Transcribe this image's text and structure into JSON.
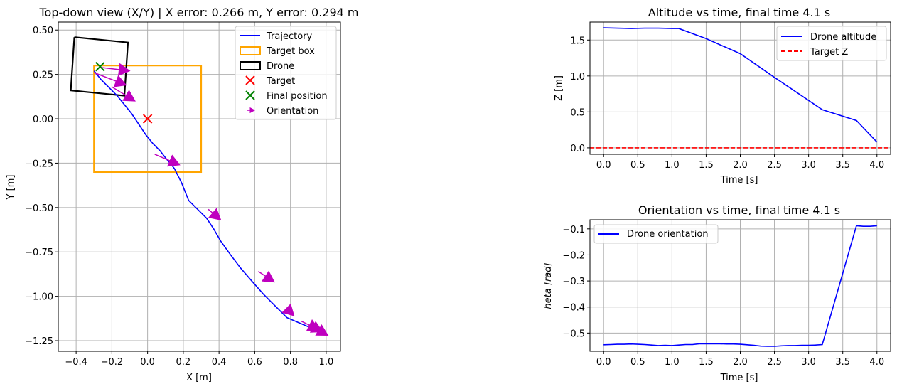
{
  "colors": {
    "trajectory": "#0000ff",
    "target_box": "#ffa500",
    "drone": "#000000",
    "target": "#ff0000",
    "final": "#008000",
    "orientation": "#bf00bf",
    "target_z": "#ff0000",
    "grid": "#b0b0b0"
  },
  "chart_data": [
    {
      "type": "line",
      "title": "Top-down view (X/Y) | X error: 0.266 m, Y error: 0.294 m",
      "xlabel": "X [m]",
      "ylabel": "Y [m]",
      "xlim": [
        -0.5,
        1.08
      ],
      "ylim": [
        -1.31,
        0.545
      ],
      "xticks": [
        -0.4,
        -0.2,
        0.0,
        0.2,
        0.4,
        0.6,
        0.8,
        1.0
      ],
      "xtick_labels": [
        "−0.4",
        "−0.2",
        "0.0",
        "0.2",
        "0.4",
        "0.6",
        "0.8",
        "1.0"
      ],
      "yticks": [
        0.5,
        0.25,
        0.0,
        -0.25,
        -0.5,
        -0.75,
        -1.0,
        -1.25
      ],
      "ytick_labels": [
        "0.50",
        "0.25",
        "0.00",
        "−0.25",
        "−0.50",
        "−0.75",
        "−1.00",
        "−1.25"
      ],
      "grid": true,
      "legend_position": "top-right",
      "legend": [
        "Trajectory",
        "Target box",
        "Drone",
        "Target",
        "Final position",
        "Orientation"
      ],
      "trajectory": {
        "x": [
          -0.3,
          -0.26,
          -0.22,
          -0.17,
          -0.13,
          -0.09,
          -0.05,
          -0.01,
          0.03,
          0.07,
          0.1,
          0.15,
          0.19,
          0.23,
          0.28,
          0.33,
          0.37,
          0.41,
          0.46,
          0.52,
          0.58,
          0.65,
          0.72,
          0.78,
          0.85,
          0.92,
          0.98,
          1.0
        ],
        "y": [
          0.27,
          0.22,
          0.18,
          0.13,
          0.08,
          0.03,
          -0.03,
          -0.09,
          -0.14,
          -0.18,
          -0.22,
          -0.28,
          -0.36,
          -0.46,
          -0.51,
          -0.56,
          -0.62,
          -0.69,
          -0.76,
          -0.84,
          -0.91,
          -0.99,
          -1.06,
          -1.12,
          -1.15,
          -1.18,
          -1.2,
          -1.21
        ]
      },
      "target_box": {
        "x": [
          -0.3,
          0.3
        ],
        "y": [
          -0.3,
          0.3
        ]
      },
      "drone_outline": {
        "x": [
          -0.41,
          -0.11,
          -0.13,
          -0.43,
          -0.41
        ],
        "y": [
          0.46,
          0.43,
          0.13,
          0.16,
          0.46
        ]
      },
      "target": {
        "x": 0.0,
        "y": 0.0
      },
      "final_position": {
        "x": -0.266,
        "y": 0.294
      },
      "orientation_arrows": [
        {
          "x": -0.27,
          "y": 0.29,
          "dx": 0.17,
          "dy": -0.02
        },
        {
          "x": -0.3,
          "y": 0.26,
          "dx": 0.18,
          "dy": -0.07
        },
        {
          "x": -0.2,
          "y": 0.18,
          "dx": 0.13,
          "dy": -0.08
        },
        {
          "x": 0.04,
          "y": -0.2,
          "dx": 0.14,
          "dy": -0.06
        },
        {
          "x": 0.34,
          "y": -0.51,
          "dx": 0.07,
          "dy": -0.06
        },
        {
          "x": 0.62,
          "y": -0.86,
          "dx": 0.09,
          "dy": -0.06
        },
        {
          "x": 0.8,
          "y": -1.09,
          "dx": 0.02,
          "dy": -0.02
        },
        {
          "x": 0.86,
          "y": -1.14,
          "dx": 0.1,
          "dy": -0.05
        },
        {
          "x": 0.9,
          "y": -1.16,
          "dx": 0.08,
          "dy": -0.04
        },
        {
          "x": 0.94,
          "y": -1.18,
          "dx": 0.07,
          "dy": -0.04
        }
      ]
    },
    {
      "type": "line",
      "title": "Altitude vs time, final time 4.1 s",
      "xlabel": "Time [s]",
      "ylabel": "Z [m]",
      "xlim": [
        -0.2,
        4.2
      ],
      "ylim": [
        -0.09,
        1.75
      ],
      "xticks": [
        0.0,
        0.5,
        1.0,
        1.5,
        2.0,
        2.5,
        3.0,
        3.5,
        4.0
      ],
      "xtick_labels": [
        "0.0",
        "0.5",
        "1.0",
        "1.5",
        "2.0",
        "2.5",
        "3.0",
        "3.5",
        "4.0"
      ],
      "yticks": [
        0.0,
        0.5,
        1.0,
        1.5
      ],
      "ytick_labels": [
        "0.0",
        "0.5",
        "1.0",
        "1.5"
      ],
      "grid": true,
      "legend_position": "top-right",
      "series": [
        {
          "name": "Drone altitude",
          "x": [
            0.0,
            0.2,
            0.4,
            0.6,
            0.8,
            1.0,
            1.1,
            1.5,
            2.0,
            2.5,
            3.0,
            3.2,
            3.7,
            4.0
          ],
          "y": [
            1.67,
            1.665,
            1.66,
            1.665,
            1.665,
            1.66,
            1.66,
            1.52,
            1.31,
            0.98,
            0.66,
            0.53,
            0.38,
            0.08
          ]
        },
        {
          "name": "Target Z",
          "x": [
            -0.2,
            4.2
          ],
          "y": [
            0.0,
            0.0
          ],
          "dashed": true
        }
      ]
    },
    {
      "type": "line",
      "title": "Orientation vs time, final time 4.1 s",
      "xlabel": "Time [s]",
      "ylabel": "heta [rad]",
      "xlim": [
        -0.2,
        4.2
      ],
      "ylim": [
        -0.57,
        -0.065
      ],
      "xticks": [
        0.0,
        0.5,
        1.0,
        1.5,
        2.0,
        2.5,
        3.0,
        3.5,
        4.0
      ],
      "xtick_labels": [
        "0.0",
        "0.5",
        "1.0",
        "1.5",
        "2.0",
        "2.5",
        "3.0",
        "3.5",
        "4.0"
      ],
      "yticks": [
        -0.1,
        -0.2,
        -0.3,
        -0.4,
        -0.5
      ],
      "ytick_labels": [
        "−0.1",
        "−0.2",
        "−0.3",
        "−0.4",
        "−0.5"
      ],
      "grid": true,
      "legend_position": "top-left",
      "series": [
        {
          "name": "Drone orientation",
          "x": [
            0.0,
            0.1,
            0.2,
            0.3,
            0.4,
            0.5,
            0.6,
            0.7,
            0.8,
            0.9,
            1.0,
            1.1,
            1.2,
            1.3,
            1.4,
            1.5,
            1.6,
            1.7,
            1.8,
            1.9,
            2.0,
            2.1,
            2.2,
            2.3,
            2.4,
            2.5,
            2.6,
            2.7,
            2.8,
            2.9,
            3.0,
            3.1,
            3.2,
            3.7,
            3.8,
            3.9,
            4.0
          ],
          "y": [
            -0.545,
            -0.544,
            -0.543,
            -0.543,
            -0.542,
            -0.543,
            -0.544,
            -0.546,
            -0.548,
            -0.547,
            -0.548,
            -0.546,
            -0.544,
            -0.544,
            -0.541,
            -0.541,
            -0.541,
            -0.541,
            -0.542,
            -0.542,
            -0.543,
            -0.545,
            -0.547,
            -0.55,
            -0.551,
            -0.551,
            -0.549,
            -0.548,
            -0.548,
            -0.547,
            -0.547,
            -0.546,
            -0.544,
            -0.088,
            -0.09,
            -0.09,
            -0.088
          ]
        }
      ]
    }
  ]
}
